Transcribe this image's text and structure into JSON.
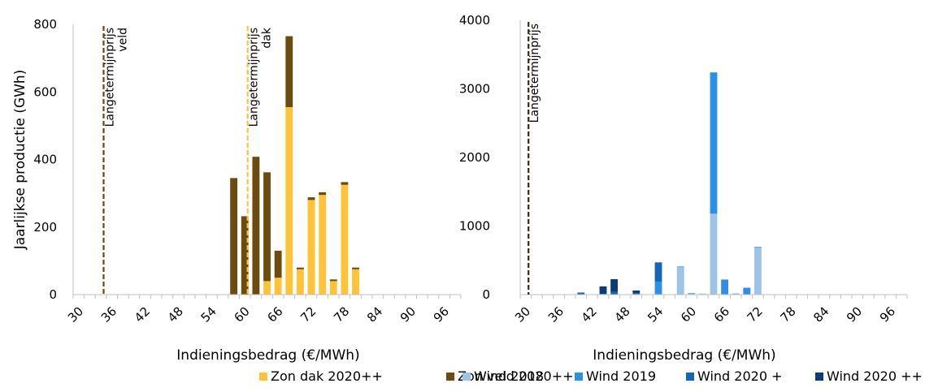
{
  "chart_data": [
    {
      "type": "bar",
      "stacked": true,
      "title": "",
      "xlabel": "Indieningsbedrag (€/MWh)",
      "ylabel": "Jaarlijkse productie (GWh)",
      "ylim": [
        0,
        800
      ],
      "yticks": [
        "0",
        "200",
        "400",
        "600",
        "800"
      ],
      "xlim": [
        30,
        100
      ],
      "xticks": [
        "30",
        "36",
        "42",
        "48",
        "54",
        "60",
        "66",
        "72",
        "78",
        "84",
        "90",
        "96"
      ],
      "x": [
        59,
        61,
        63,
        65,
        67,
        69,
        71,
        73,
        75,
        77,
        79,
        81
      ],
      "series": [
        {
          "name": "Zon dak 2020++",
          "color": "#FFC33A",
          "values": [
            0,
            0,
            0,
            40,
            50,
            555,
            75,
            280,
            295,
            40,
            325,
            75
          ]
        },
        {
          "name": "Zon veld 2020++",
          "color": "#6B4B0E",
          "values": [
            345,
            232,
            408,
            322,
            80,
            210,
            5,
            8,
            8,
            5,
            8,
            5
          ]
        }
      ],
      "reference_lines": [
        {
          "x": 35.5,
          "label_lines": [
            "Langetermijnprijs",
            "veld"
          ],
          "color": "#6B4B0E"
        },
        {
          "x": 61.5,
          "label_lines": [
            "Langetermijnprijs",
            "dak"
          ],
          "color": "#FFC33A"
        }
      ],
      "grid": false,
      "legend": "bottom"
    },
    {
      "type": "bar",
      "stacked": true,
      "title": "",
      "xlabel": "Indieningsbedrag (€/MWh)",
      "ylabel": "",
      "ylim": [
        0,
        4000
      ],
      "yticks": [
        "0",
        "1000",
        "2000",
        "3000",
        "4000"
      ],
      "xlim": [
        30,
        100
      ],
      "xticks": [
        "30",
        "36",
        "42",
        "48",
        "54",
        "60",
        "66",
        "72",
        "78",
        "84",
        "90",
        "96"
      ],
      "x": [
        41,
        45,
        47,
        51,
        55,
        59,
        61,
        63,
        65,
        67,
        69,
        71,
        73
      ],
      "series": [
        {
          "name": "Wind 2018",
          "color": "#9DC3E6",
          "values": [
            0,
            0,
            0,
            0,
            0,
            400,
            15,
            15,
            1180,
            0,
            20,
            0,
            690
          ]
        },
        {
          "name": "Wind 2019",
          "color": "#2E8FE6",
          "values": [
            0,
            0,
            0,
            0,
            190,
            10,
            5,
            0,
            2060,
            220,
            0,
            100,
            5
          ]
        },
        {
          "name": "Wind 2020 +",
          "color": "#1665B5",
          "values": [
            30,
            10,
            40,
            20,
            280,
            0,
            0,
            0,
            0,
            0,
            0,
            0,
            0
          ]
        },
        {
          "name": "Wind 2020 ++",
          "color": "#0A3C78",
          "values": [
            0,
            110,
            185,
            40,
            0,
            0,
            0,
            0,
            0,
            0,
            0,
            0,
            0
          ]
        }
      ],
      "reference_lines": [
        {
          "x": 31.5,
          "label_lines": [
            "Langetermijnprijs"
          ],
          "color": "#3A2A10"
        }
      ],
      "grid": false,
      "legend": "bottom"
    }
  ]
}
